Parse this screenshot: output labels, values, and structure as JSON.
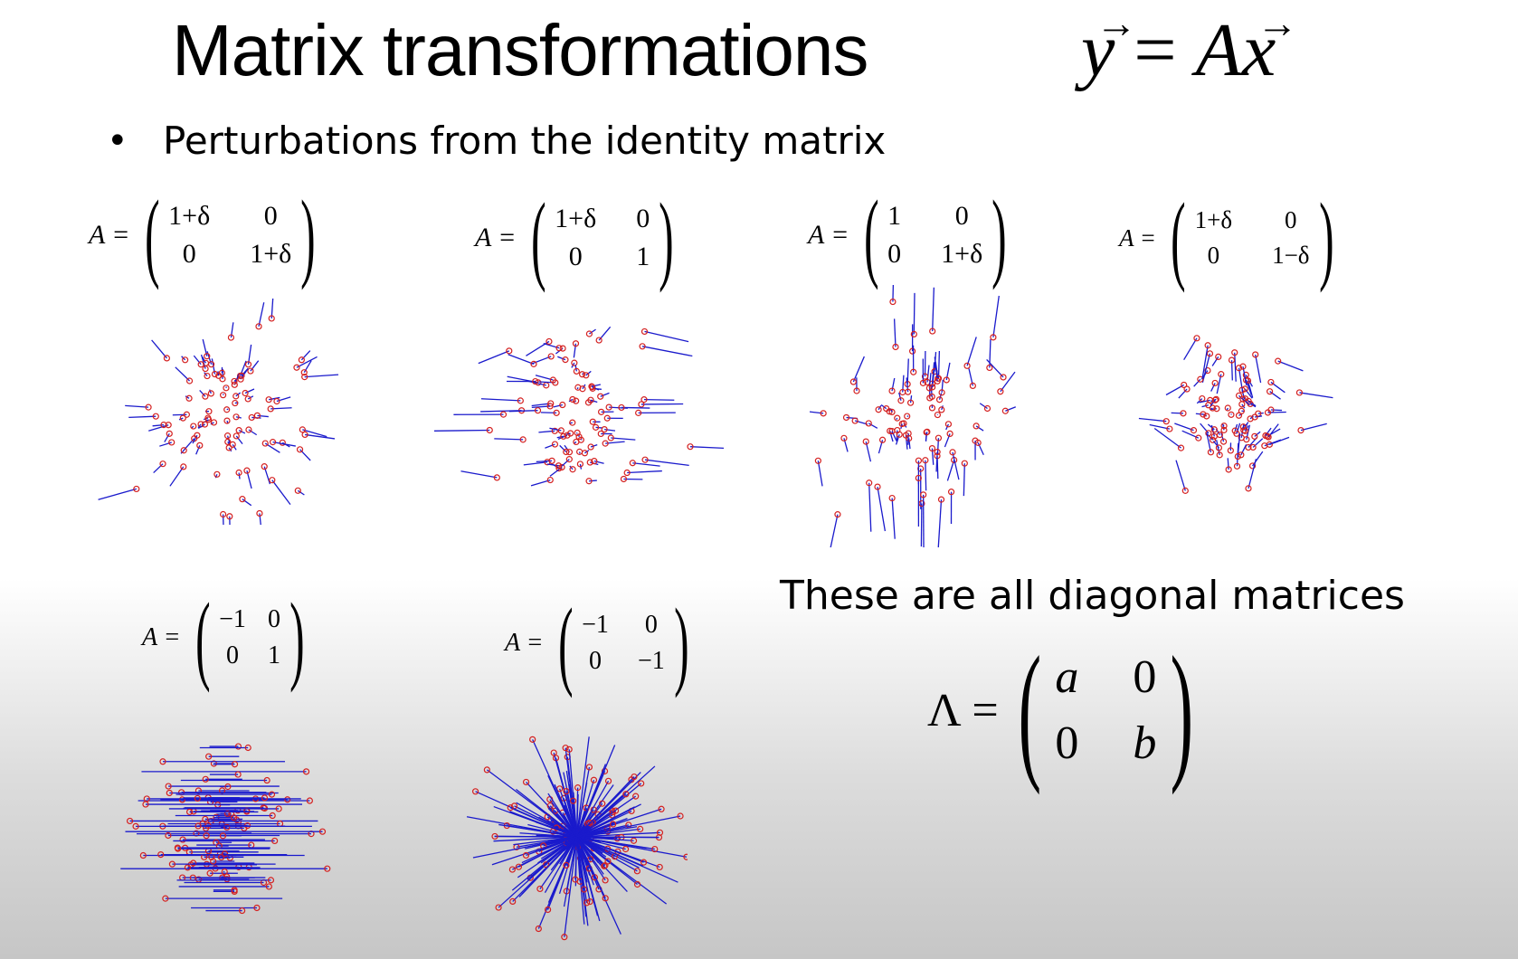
{
  "title": "Matrix transformations",
  "equation": {
    "lhs": "y",
    "eq": " = ",
    "a": "A",
    "x": "x"
  },
  "subtitle": "Perturbations from the identity matrix",
  "matrices": [
    {
      "label": "A =",
      "cells": [
        "1+δ",
        "0",
        "0",
        "1+δ"
      ],
      "sx": 1.25,
      "sy": 1.25,
      "mode": "radial"
    },
    {
      "label": "A =",
      "cells": [
        "1+δ",
        "0",
        "0",
        "1"
      ],
      "sx": 1.6,
      "sy": 1.0,
      "mode": "h"
    },
    {
      "label": "A =",
      "cells": [
        "1",
        "0",
        "0",
        "1+δ"
      ],
      "sx": 1.0,
      "sy": 1.6,
      "mode": "v"
    },
    {
      "label": "A =",
      "cells": [
        "1+δ",
        "0",
        "0",
        "1−δ"
      ],
      "sx": 1.35,
      "sy": 0.65,
      "mode": "shear"
    },
    {
      "label": "A =",
      "cells": [
        "−1",
        "0",
        "0",
        "1"
      ],
      "sx": -1,
      "sy": 1,
      "mode": "flipx"
    },
    {
      "label": "A =",
      "cells": [
        "−1",
        "0",
        "0",
        "−1"
      ],
      "sx": -1,
      "sy": -1,
      "mode": "flipxy"
    }
  ],
  "note": "These are all diagonal matrices",
  "diagonal": {
    "label": "Λ =",
    "cells": [
      "a",
      "0",
      "0",
      "b"
    ]
  },
  "colors": {
    "line": "#1a1acc",
    "point": "#d42020"
  }
}
